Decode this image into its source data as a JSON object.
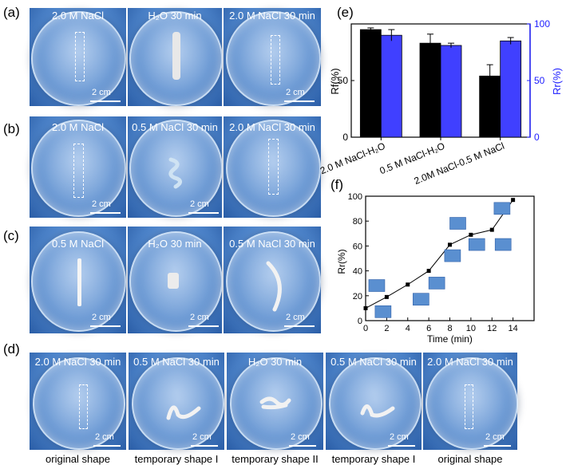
{
  "panel_labels": {
    "a": "(a)",
    "b": "(b)",
    "c": "(c)",
    "d": "(d)",
    "e": "(e)",
    "f": "(f)"
  },
  "row_a": [
    "2.0 M NaCl",
    "H₂O 30 min",
    "2.0 M NaCl  30 min"
  ],
  "row_b": [
    "2.0 M NaCl",
    "0.5 M NaCl 30 min",
    "2.0 M NaCl  30 min"
  ],
  "row_c": [
    "0.5 M NaCl",
    "H₂O 30 min",
    "0.5 M NaCl 30 min"
  ],
  "row_d": [
    "2.0 M NaCl  30 min",
    "0.5 M NaCl 30 min",
    "H₂O 30 min",
    "0.5 M NaCl 30 min",
    "2.0 M NaCl  30 min"
  ],
  "row_d_bottom": [
    "original shape",
    "temporary shape I",
    "temporary shape II",
    "temporary shape I",
    "original shape"
  ],
  "scale_bar": "2 cm",
  "chart_data": [
    {
      "type": "bar",
      "categories": [
        "2.0 M NaCl-H₂O",
        "0.5 M NaCl-H₂O",
        "2.0M NaCl-0.5 M NaCl"
      ],
      "series": [
        {
          "name": "Rf",
          "values": [
            95,
            83,
            54
          ],
          "errors": [
            1.5,
            8,
            10
          ],
          "color": "#000000",
          "axis": "left"
        },
        {
          "name": "Rr",
          "values": [
            90,
            81,
            85
          ],
          "errors": [
            5,
            2,
            3
          ],
          "color": "#4040ff",
          "axis": "right"
        }
      ],
      "ylabel_left": "Rf(%)",
      "ylabel_right": "Rr(%)",
      "ylim": [
        0,
        100
      ],
      "yticks_left": [
        0,
        50
      ],
      "yticks_right": [
        0,
        50,
        100
      ]
    },
    {
      "type": "line",
      "x": [
        0,
        2,
        4,
        6,
        8,
        10,
        12,
        14
      ],
      "y": [
        10,
        19,
        29,
        40,
        61,
        69,
        73,
        97
      ],
      "xlabel": "Time (min)",
      "ylabel": "Rr(%)",
      "xlim": [
        0,
        16
      ],
      "ylim": [
        0,
        100
      ],
      "xticks": [
        0,
        2,
        4,
        6,
        8,
        10,
        12,
        14
      ],
      "yticks": [
        0,
        20,
        40,
        60,
        80,
        100
      ]
    }
  ]
}
